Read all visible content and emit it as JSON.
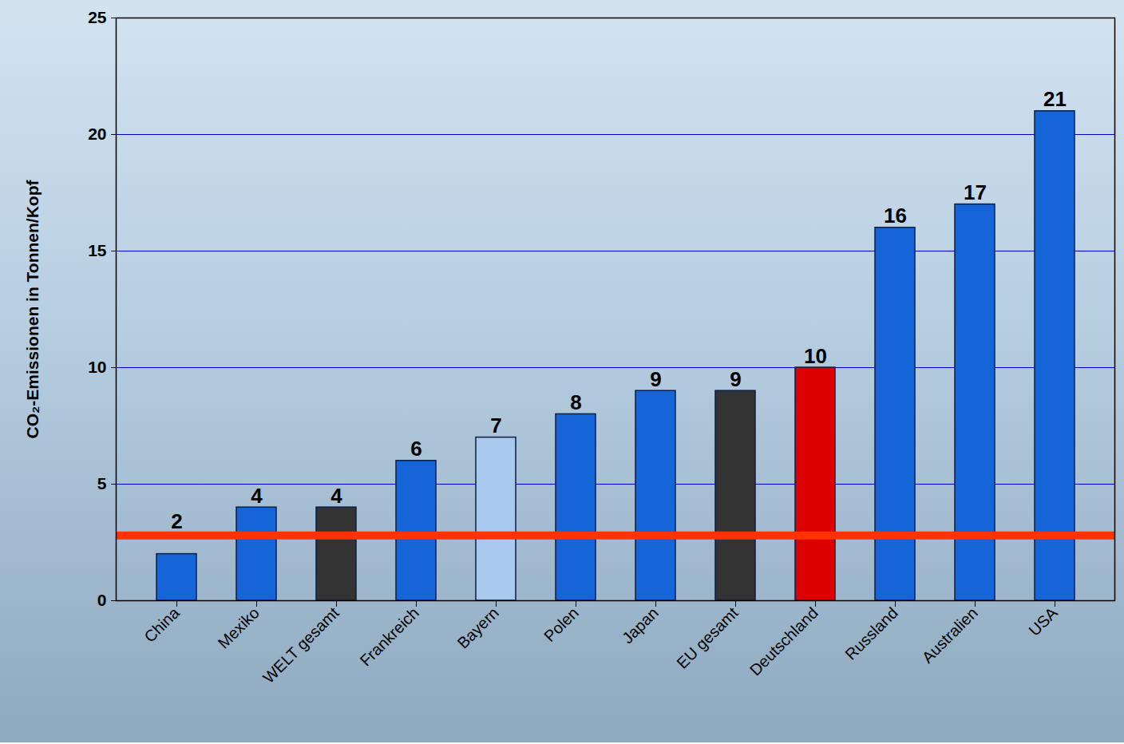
{
  "chart_data": {
    "type": "bar",
    "y_label": "CO₂-Emissionen in Tonnen/Kopf",
    "categories": [
      "China",
      "Mexiko",
      "WELT gesamt",
      "Frankreich",
      "Bayern",
      "Polen",
      "Japan",
      "EU gesamt",
      "Deutschland",
      "Russland",
      "Australien",
      "USA"
    ],
    "values": [
      2,
      4,
      4,
      6,
      7,
      8,
      9,
      9,
      10,
      16,
      17,
      21
    ],
    "colors": [
      "#1565d8",
      "#1565d8",
      "#333333",
      "#1565d8",
      "#a9c8ee",
      "#1565d8",
      "#1565d8",
      "#333333",
      "#dd0000",
      "#1565d8",
      "#1565d8",
      "#1565d8"
    ],
    "target_line": 2.8,
    "ylim": [
      0,
      25
    ],
    "yticks": [
      0,
      5,
      10,
      15,
      20,
      25
    ],
    "grid": true,
    "data_labels": true
  }
}
